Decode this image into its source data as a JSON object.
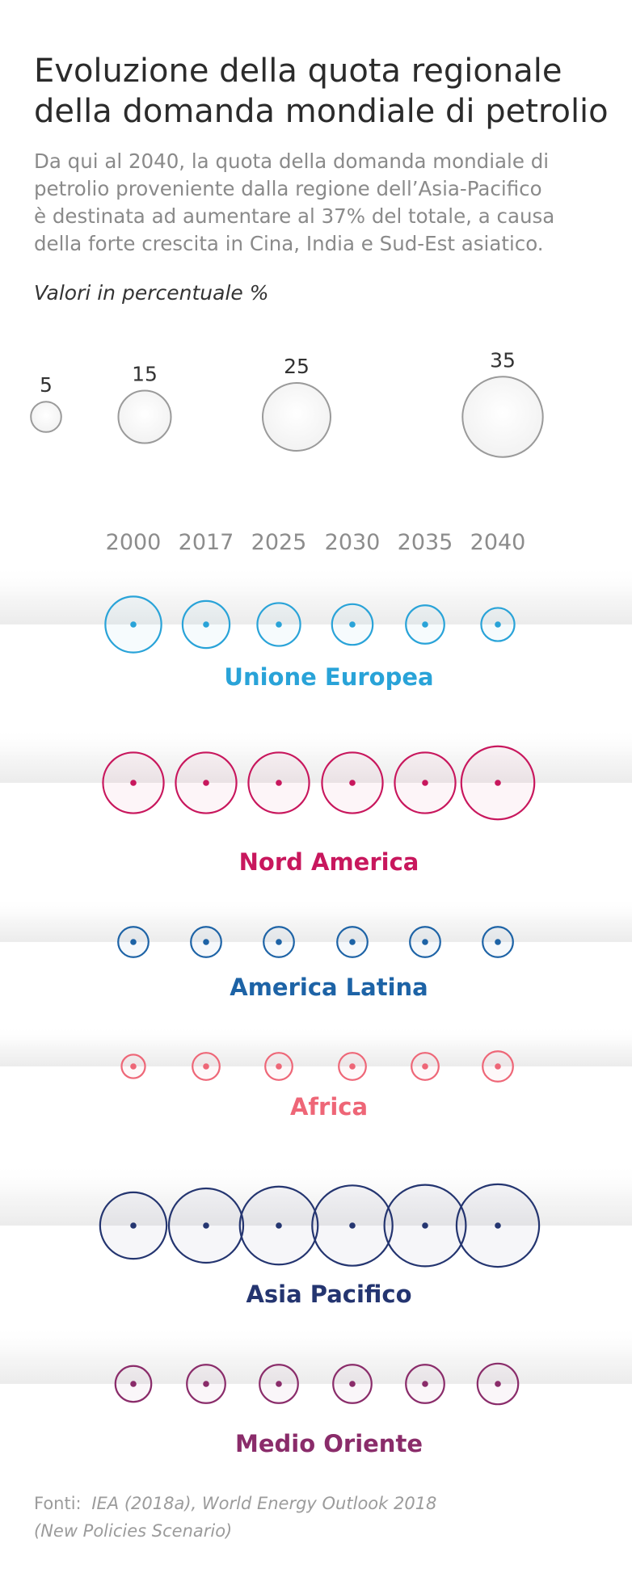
{
  "header": {
    "title_line1": "Evoluzione della quota regionale",
    "title_line2": "della domanda mondiale di petrolio",
    "subtitle_lines": [
      "Da qui al 2040, la quota della domanda mondiale di",
      "petrolio proveniente dalla regione dell’Asia-Pacifico",
      "è destinata ad aumentare al 37% del totale, a causa",
      "della forte crescita in Cina, India e Sud-Est asiatico."
    ],
    "units_label": "Valori in percentuale %"
  },
  "source": {
    "prefix": "Fonti:",
    "line1": "IEA (2018a), World Energy Outlook 2018",
    "line2": "(New Policies Scenario)"
  },
  "chart_data": {
    "type": "bubble",
    "size_legend": [
      {
        "label": "5",
        "value": 5
      },
      {
        "label": "15",
        "value": 15
      },
      {
        "label": "25",
        "value": 25
      },
      {
        "label": "35",
        "value": 35
      }
    ],
    "years": [
      "2000",
      "2017",
      "2025",
      "2030",
      "2035",
      "2040"
    ],
    "series": [
      {
        "name": "Unione Europea",
        "color": "#29a3d8",
        "values": [
          17,
          12,
          10,
          9,
          8,
          6
        ]
      },
      {
        "name": "Nord America",
        "color": "#c8175d",
        "values": [
          20,
          20,
          20,
          20,
          20,
          29
        ]
      },
      {
        "name": "America Latina",
        "color": "#1d63a6",
        "values": [
          5,
          5,
          5,
          5,
          5,
          5
        ]
      },
      {
        "name": "Africa",
        "color": "#ee6677",
        "values": [
          3,
          4,
          4,
          4,
          4,
          5
        ]
      },
      {
        "name": "Asia Pacifico",
        "color": "#243570",
        "values": [
          24,
          30,
          33,
          35,
          36,
          37
        ]
      },
      {
        "name": "Medio Oriente",
        "color": "#8a2c6a",
        "values": [
          7,
          8,
          8,
          8,
          8,
          9
        ]
      }
    ]
  }
}
